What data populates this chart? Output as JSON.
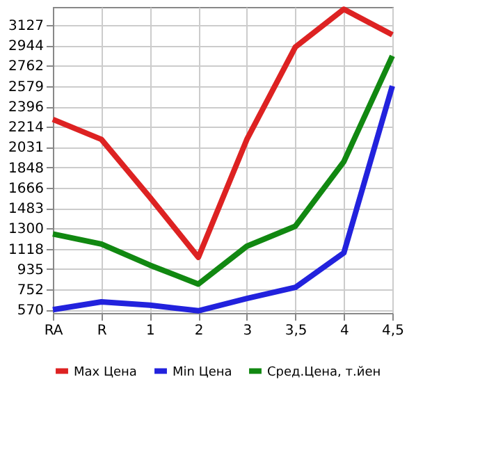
{
  "chart_data": {
    "type": "line",
    "categories": [
      "RA",
      "R",
      "1",
      "2",
      "3",
      "3,5",
      "4",
      "4,5"
    ],
    "series": [
      {
        "name": "Max Цена",
        "color": "#dd2222",
        "values": [
          2280,
          2100,
          1580,
          1040,
          2100,
          2930,
          3270,
          3040
        ]
      },
      {
        "name": "Min Цена",
        "color": "#2222dd",
        "values": [
          570,
          640,
          610,
          560,
          670,
          770,
          1080,
          2580
        ]
      },
      {
        "name": "Сред.Цена, т.йен",
        "color": "#118811",
        "values": [
          1250,
          1160,
          970,
          800,
          1140,
          1320,
          1900,
          2850
        ]
      }
    ],
    "ylim": [
      540,
      3290
    ],
    "yticks": [
      570,
      752,
      935,
      1118,
      1300,
      1483,
      1666,
      1848,
      2031,
      2214,
      2396,
      2579,
      2762,
      2944,
      3127
    ],
    "grid": true,
    "legend": "bottom",
    "marker": "none",
    "line_style": "solid"
  }
}
